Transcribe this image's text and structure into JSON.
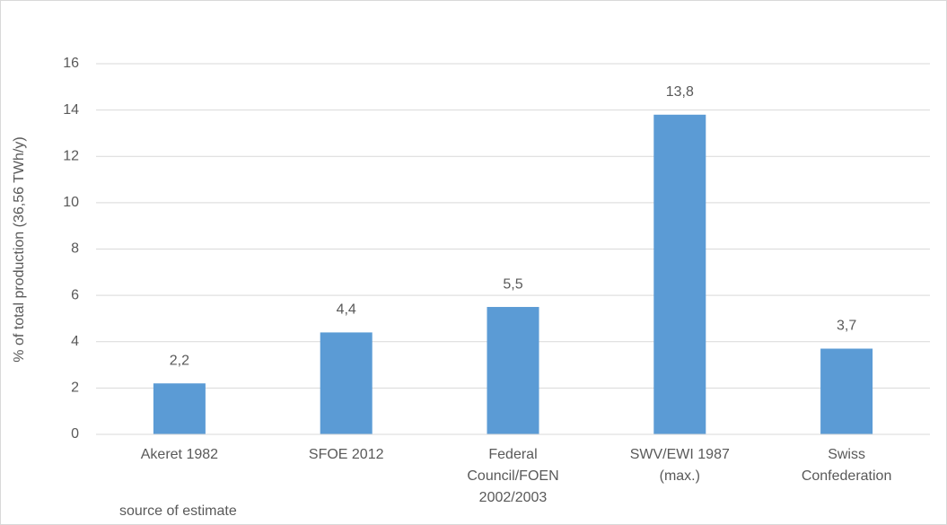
{
  "chart_data": {
    "type": "bar",
    "categories": [
      "Akeret 1982",
      "SFOE 2012",
      "Federal\nCouncil/FOEN\n2002/2003",
      "SWV/EWI 1987\n(max.)",
      "Swiss\nConfederation"
    ],
    "values": [
      2.2,
      4.4,
      5.5,
      13.8,
      3.7
    ],
    "value_labels": [
      "2,2",
      "4,4",
      "5,5",
      "13,8",
      "3,7"
    ],
    "color": "#5b9bd5",
    "x_label": "source of estimate",
    "y_label": "% of total production (36,56 TWh/y)",
    "ylim": [
      0,
      16
    ],
    "yticks": [
      0,
      2,
      4,
      6,
      8,
      10,
      12,
      14,
      16
    ],
    "grid": true
  }
}
